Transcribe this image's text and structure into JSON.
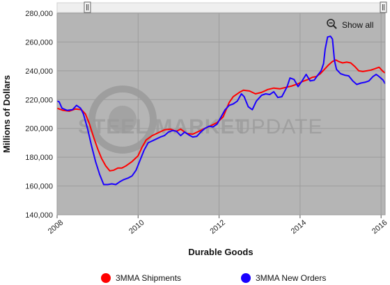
{
  "chart_data": {
    "type": "line",
    "xlabel": "Durable Goods",
    "ylabel": "Millions of Dollars",
    "xlim": [
      2008,
      2016.1
    ],
    "ylim": [
      140000,
      280000
    ],
    "x_ticks": [
      2008,
      2010,
      2012,
      2014,
      2016
    ],
    "y_ticks": [
      140000,
      160000,
      180000,
      200000,
      220000,
      240000,
      260000,
      280000
    ],
    "y_tick_labels": [
      "140,000",
      "160,000",
      "180,000",
      "200,000",
      "220,000",
      "240,000",
      "260,000",
      "280,000"
    ],
    "x_tick_labels": [
      "2008",
      "2010",
      "2012",
      "2014",
      "2016"
    ],
    "grid": true,
    "legend_position": "bottom",
    "series": [
      {
        "name": "3MMA Shipments",
        "color": "#ff0000",
        "points": [
          [
            2008.0,
            214000
          ],
          [
            2008.15,
            212500
          ],
          [
            2008.3,
            212000
          ],
          [
            2008.45,
            213500
          ],
          [
            2008.6,
            213000
          ],
          [
            2008.7,
            210000
          ],
          [
            2008.8,
            203000
          ],
          [
            2008.9,
            194000
          ],
          [
            2009.0,
            186000
          ],
          [
            2009.1,
            179000
          ],
          [
            2009.2,
            174000
          ],
          [
            2009.3,
            170500
          ],
          [
            2009.4,
            171000
          ],
          [
            2009.5,
            172500
          ],
          [
            2009.6,
            172500
          ],
          [
            2009.7,
            174000
          ],
          [
            2009.85,
            177000
          ],
          [
            2010.0,
            181000
          ],
          [
            2010.1,
            187000
          ],
          [
            2010.2,
            192000
          ],
          [
            2010.35,
            195000
          ],
          [
            2010.5,
            197000
          ],
          [
            2010.65,
            199000
          ],
          [
            2010.8,
            199500
          ],
          [
            2010.95,
            198000
          ],
          [
            2011.05,
            199500
          ],
          [
            2011.2,
            196500
          ],
          [
            2011.35,
            196000
          ],
          [
            2011.5,
            198000
          ],
          [
            2011.65,
            200000
          ],
          [
            2011.8,
            202000
          ],
          [
            2011.95,
            204000
          ],
          [
            2012.1,
            208000
          ],
          [
            2012.25,
            218000
          ],
          [
            2012.35,
            222000
          ],
          [
            2012.5,
            225000
          ],
          [
            2012.6,
            226500
          ],
          [
            2012.75,
            226000
          ],
          [
            2012.9,
            224000
          ],
          [
            2013.05,
            225000
          ],
          [
            2013.2,
            227000
          ],
          [
            2013.35,
            228000
          ],
          [
            2013.5,
            227500
          ],
          [
            2013.65,
            228500
          ],
          [
            2013.8,
            229500
          ],
          [
            2013.95,
            231000
          ],
          [
            2014.05,
            232500
          ],
          [
            2014.2,
            234000
          ],
          [
            2014.3,
            235500
          ],
          [
            2014.4,
            236000
          ],
          [
            2014.5,
            238000
          ],
          [
            2014.6,
            241000
          ],
          [
            2014.7,
            244000
          ],
          [
            2014.8,
            246500
          ],
          [
            2014.88,
            247500
          ],
          [
            2014.95,
            246500
          ],
          [
            2015.05,
            245500
          ],
          [
            2015.15,
            246000
          ],
          [
            2015.25,
            245500
          ],
          [
            2015.35,
            243000
          ],
          [
            2015.45,
            240000
          ],
          [
            2015.55,
            239500
          ],
          [
            2015.65,
            240000
          ],
          [
            2015.75,
            240500
          ],
          [
            2015.85,
            241500
          ],
          [
            2015.95,
            242500
          ],
          [
            2016.05,
            239500
          ],
          [
            2016.1,
            238500
          ]
        ]
      },
      {
        "name": "3MMA New Orders",
        "color": "#1a00ff",
        "points": [
          [
            2008.0,
            219000
          ],
          [
            2008.05,
            218500
          ],
          [
            2008.12,
            214000
          ],
          [
            2008.25,
            212500
          ],
          [
            2008.38,
            213000
          ],
          [
            2008.48,
            216000
          ],
          [
            2008.58,
            214000
          ],
          [
            2008.65,
            210000
          ],
          [
            2008.75,
            200000
          ],
          [
            2008.85,
            188000
          ],
          [
            2008.95,
            177000
          ],
          [
            2009.05,
            168000
          ],
          [
            2009.15,
            161000
          ],
          [
            2009.25,
            161000
          ],
          [
            2009.35,
            161500
          ],
          [
            2009.45,
            161000
          ],
          [
            2009.55,
            163000
          ],
          [
            2009.65,
            164500
          ],
          [
            2009.75,
            165500
          ],
          [
            2009.85,
            167000
          ],
          [
            2009.95,
            171000
          ],
          [
            2010.05,
            178000
          ],
          [
            2010.15,
            185000
          ],
          [
            2010.25,
            190000
          ],
          [
            2010.4,
            192000
          ],
          [
            2010.55,
            194000
          ],
          [
            2010.65,
            195000
          ],
          [
            2010.75,
            197500
          ],
          [
            2010.85,
            198500
          ],
          [
            2010.95,
            198000
          ],
          [
            2011.05,
            195000
          ],
          [
            2011.15,
            197500
          ],
          [
            2011.25,
            195500
          ],
          [
            2011.35,
            194000
          ],
          [
            2011.45,
            194500
          ],
          [
            2011.55,
            197500
          ],
          [
            2011.65,
            200000
          ],
          [
            2011.75,
            201500
          ],
          [
            2011.85,
            201000
          ],
          [
            2011.95,
            203000
          ],
          [
            2012.05,
            208000
          ],
          [
            2012.15,
            213000
          ],
          [
            2012.25,
            216000
          ],
          [
            2012.35,
            217000
          ],
          [
            2012.45,
            219000
          ],
          [
            2012.55,
            224000
          ],
          [
            2012.62,
            222000
          ],
          [
            2012.72,
            215000
          ],
          [
            2012.82,
            213000
          ],
          [
            2012.92,
            219000
          ],
          [
            2013.05,
            223000
          ],
          [
            2013.15,
            224000
          ],
          [
            2013.25,
            223500
          ],
          [
            2013.35,
            225500
          ],
          [
            2013.45,
            221500
          ],
          [
            2013.55,
            222000
          ],
          [
            2013.68,
            229000
          ],
          [
            2013.75,
            235000
          ],
          [
            2013.85,
            234000
          ],
          [
            2013.95,
            229000
          ],
          [
            2014.05,
            233000
          ],
          [
            2014.15,
            237500
          ],
          [
            2014.25,
            233000
          ],
          [
            2014.35,
            233500
          ],
          [
            2014.45,
            237500
          ],
          [
            2014.52,
            240000
          ],
          [
            2014.58,
            245000
          ],
          [
            2014.62,
            255000
          ],
          [
            2014.68,
            263500
          ],
          [
            2014.75,
            264000
          ],
          [
            2014.8,
            262000
          ],
          [
            2014.85,
            247000
          ],
          [
            2014.9,
            241000
          ],
          [
            2015.0,
            238000
          ],
          [
            2015.1,
            237000
          ],
          [
            2015.2,
            236500
          ],
          [
            2015.3,
            233000
          ],
          [
            2015.4,
            230500
          ],
          [
            2015.5,
            231500
          ],
          [
            2015.6,
            232000
          ],
          [
            2015.7,
            233000
          ],
          [
            2015.8,
            236000
          ],
          [
            2015.88,
            237500
          ],
          [
            2015.95,
            236000
          ],
          [
            2016.05,
            233500
          ],
          [
            2016.1,
            231000
          ]
        ]
      }
    ]
  },
  "ui": {
    "show_all_label": "Show all",
    "zoom_icon": "magnifier-zoom-out-icon",
    "watermark": {
      "bold": "STEEL MARKET",
      "light": "UPDATE"
    },
    "legend": [
      "3MMA Shipments",
      "3MMA New Orders"
    ]
  }
}
